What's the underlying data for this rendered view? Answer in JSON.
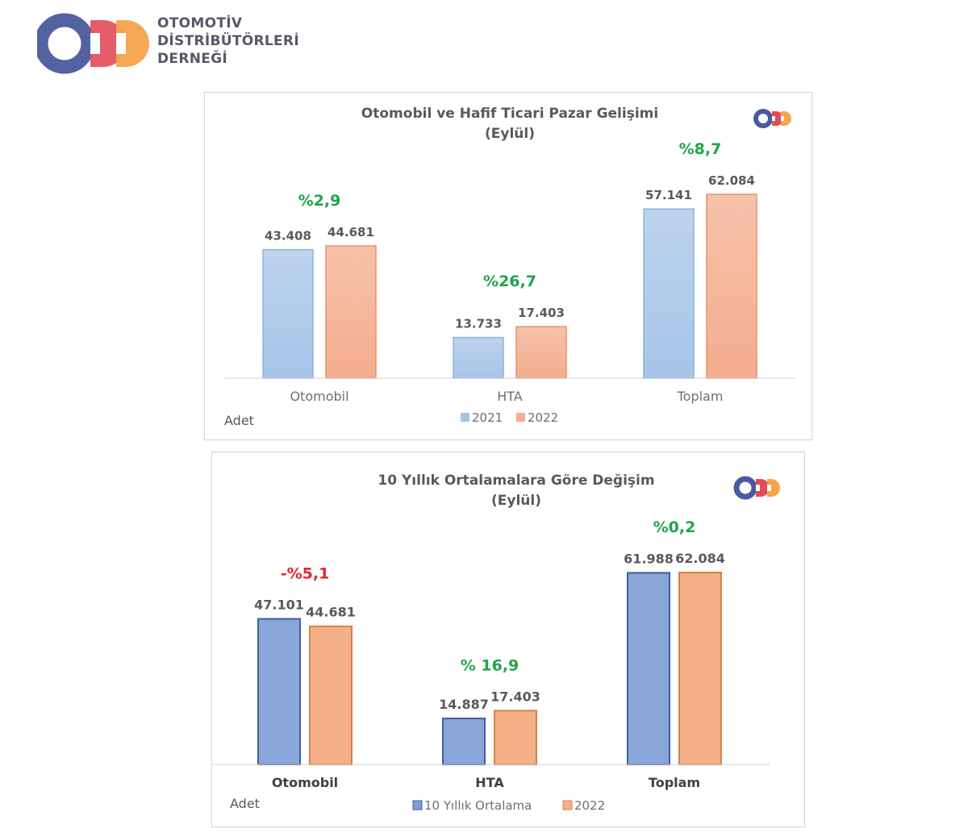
{
  "brand": {
    "name_lines": [
      "OTOMOTİV",
      "DİSTRİBÜTÖRLERİ",
      "DERNEĞİ"
    ],
    "colors": [
      "#4a5a9c",
      "#e14b5a",
      "#f6a34b"
    ]
  },
  "chart_data": [
    {
      "type": "bar",
      "title": "Otomobil ve Hafif Ticari Pazar Gelişimi",
      "subtitle": "(Eylül)",
      "categories": [
        "Otomobil",
        "HTA",
        "Toplam"
      ],
      "series": [
        {
          "name": "2021",
          "values": [
            43408,
            13733,
            57141
          ],
          "labels": [
            "43.408",
            "13.733",
            "57.141"
          ],
          "color": "#a7c4e8"
        },
        {
          "name": "2022",
          "values": [
            44681,
            17403,
            62084
          ],
          "labels": [
            "44.681",
            "17.403",
            "62.084"
          ],
          "color": "#f4ad8e"
        }
      ],
      "change_labels": [
        "%2,9",
        "%26,7",
        "%8,7"
      ],
      "change_colors": [
        "#1fa54a",
        "#1fa54a",
        "#1fa54a"
      ],
      "unit_label": "Adet",
      "ylim": [
        0,
        62084
      ],
      "grid": false,
      "legend_position": "bottom"
    },
    {
      "type": "bar",
      "title": "10 Yıllık Ortalamalara  Göre Değişim",
      "subtitle": "(Eylül)",
      "categories": [
        "Otomobil",
        "HTA",
        "Toplam"
      ],
      "series": [
        {
          "name": "10 Yıllık Ortalama",
          "values": [
            47101,
            14887,
            61988
          ],
          "labels": [
            "47.101",
            "14.887",
            "61.988"
          ],
          "color": "#8aa6d8"
        },
        {
          "name": "2022",
          "values": [
            44681,
            17403,
            62084
          ],
          "labels": [
            "44.681",
            "17.403",
            "62.084"
          ],
          "color": "#f4b086"
        }
      ],
      "change_labels": [
        "-%5,1",
        "% 16,9",
        "%0,2"
      ],
      "change_colors": [
        "#e0262e",
        "#1fa54a",
        "#1fa54a"
      ],
      "unit_label": "Adet",
      "ylim": [
        0,
        62084
      ],
      "grid": false,
      "legend_position": "bottom"
    }
  ]
}
